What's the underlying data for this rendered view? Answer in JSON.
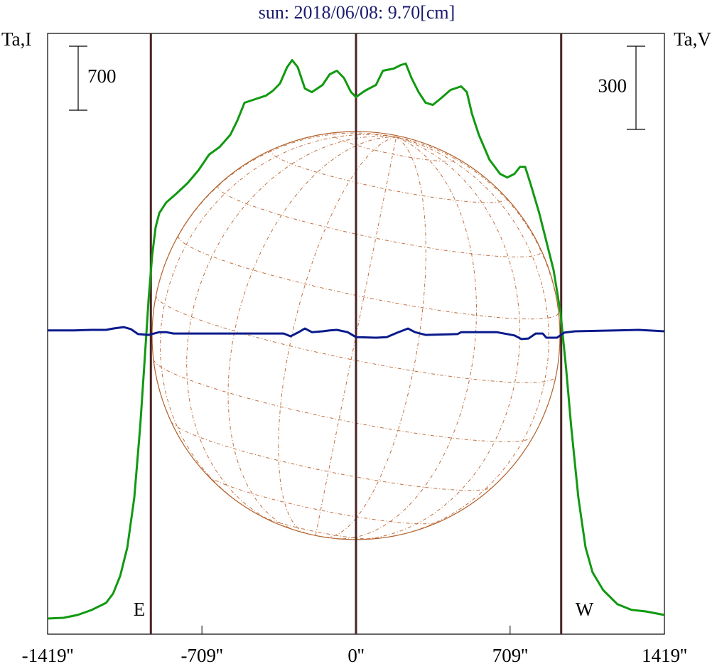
{
  "chart_data": {
    "type": "line",
    "title": "sun: 2018/06/08: 9.70[cm]",
    "ylabel": "Ta,I",
    "y2label": "Ta,V",
    "xlim": [
      -1419,
      1419
    ],
    "xticks": [
      {
        "value": -1419,
        "label": "-1419''"
      },
      {
        "value": -709,
        "label": "-709''"
      },
      {
        "value": 0,
        "label": "0''"
      },
      {
        "value": 709,
        "label": "709''"
      },
      {
        "value": 1419,
        "label": "1419''"
      }
    ],
    "ylim": [
      0,
      6570
    ],
    "y2lim": [
      -1092,
      1074
    ],
    "scale_bars": [
      {
        "value": 700,
        "axis": "y"
      },
      {
        "value": 300,
        "axis": "y2"
      }
    ],
    "markers": [
      {
        "x": -944,
        "label": "E"
      },
      {
        "x": 0
      },
      {
        "x": 944,
        "label": "W"
      }
    ],
    "series": [
      {
        "name": "I",
        "color": "#119911",
        "axis": "y",
        "x": [
          -1419,
          -1346,
          -1281,
          -1216,
          -1150,
          -1118,
          -1085,
          -1052,
          -1020,
          -993,
          -971,
          -954,
          -938,
          -922,
          -905,
          -873,
          -824,
          -775,
          -725,
          -676,
          -627,
          -578,
          -546,
          -513,
          -464,
          -415,
          -382,
          -350,
          -317,
          -294,
          -268,
          -235,
          -203,
          -154,
          -121,
          -88,
          -56,
          -23,
          0,
          42,
          92,
          124,
          173,
          206,
          229,
          255,
          288,
          320,
          353,
          386,
          435,
          484,
          510,
          533,
          565,
          614,
          663,
          696,
          729,
          755,
          778,
          804,
          843,
          876,
          909,
          941,
          967,
          990,
          1023,
          1056,
          1088,
          1137,
          1203,
          1268,
          1333,
          1419
        ],
        "values": [
          171,
          179,
          210,
          265,
          342,
          443,
          638,
          949,
          1494,
          2272,
          3050,
          3672,
          4139,
          4450,
          4606,
          4722,
          4824,
          4933,
          5073,
          5244,
          5329,
          5462,
          5617,
          5812,
          5851,
          5889,
          5944,
          6022,
          6201,
          6278,
          6201,
          5967,
          5928,
          6006,
          6123,
          6162,
          6084,
          5928,
          5874,
          5944,
          6006,
          6162,
          6185,
          6224,
          6240,
          6084,
          5928,
          5812,
          5788,
          5851,
          5952,
          5991,
          5928,
          5695,
          5462,
          5189,
          5034,
          4995,
          5034,
          5111,
          5111,
          4917,
          4606,
          4295,
          3983,
          3517,
          2894,
          2272,
          1494,
          949,
          677,
          482,
          327,
          265,
          249,
          210
        ]
      },
      {
        "name": "V",
        "color": "#0a1a8c",
        "axis": "y2",
        "x": [
          -1419,
          -1297,
          -1216,
          -1150,
          -1118,
          -1069,
          -1036,
          -1003,
          -954,
          -905,
          -873,
          -840,
          -660,
          -497,
          -333,
          -301,
          -268,
          -235,
          -203,
          -154,
          -121,
          -88,
          -39,
          0,
          92,
          141,
          190,
          239,
          271,
          320,
          467,
          484,
          647,
          729,
          761,
          794,
          827,
          859,
          876,
          925,
          958,
          1007,
          1301,
          1419
        ],
        "values": [
          3,
          3,
          5,
          5,
          10,
          15,
          8,
          -10,
          -13,
          -3,
          -3,
          -8,
          -8,
          -8,
          -8,
          -18,
          -5,
          10,
          -3,
          0,
          3,
          5,
          -3,
          -21,
          -23,
          -21,
          -5,
          10,
          -3,
          -13,
          -10,
          -3,
          -3,
          -15,
          -28,
          -26,
          -8,
          -8,
          -23,
          -23,
          -5,
          0,
          5,
          0
        ]
      }
    ]
  }
}
